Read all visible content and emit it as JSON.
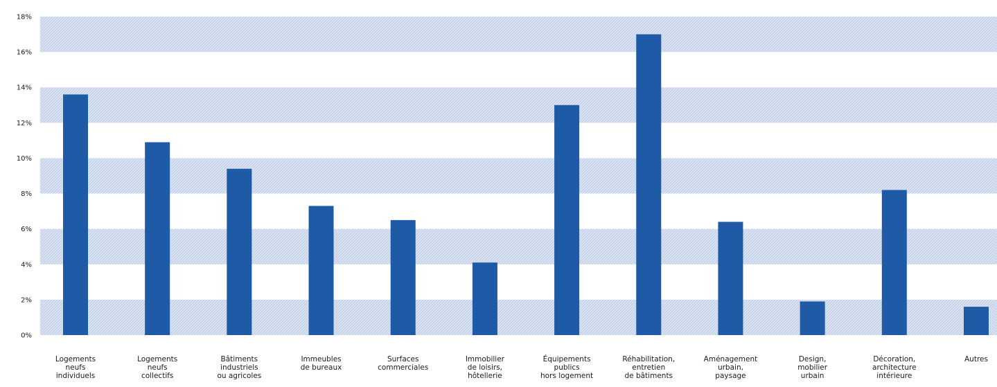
{
  "chart_data": {
    "type": "bar",
    "categories": [
      [
        "Logements",
        "neufs",
        "individuels"
      ],
      [
        "Logements",
        "neufs",
        "collectifs"
      ],
      [
        "Bâtiments",
        "industriels",
        "ou agricoles"
      ],
      [
        "Immeubles",
        "de bureaux"
      ],
      [
        "Surfaces",
        "commerciales"
      ],
      [
        "Immobilier",
        "de loisirs,",
        "hôtellerie"
      ],
      [
        "Équipements",
        "publics",
        "hors logement"
      ],
      [
        "Réhabilitation,",
        "entretien",
        "de bâtiments"
      ],
      [
        "Aménagement",
        "urbain,",
        "paysage"
      ],
      [
        "Design,",
        "mobilier",
        "urbain"
      ],
      [
        "Décoration,",
        "architecture",
        "intérieure"
      ],
      [
        "Autres"
      ]
    ],
    "values": [
      13.6,
      10.9,
      9.4,
      7.3,
      6.5,
      4.1,
      13.0,
      17.0,
      6.4,
      1.9,
      8.2,
      1.6
    ],
    "yticks": [
      "18%",
      "16%",
      "14%",
      "12%",
      "10%",
      "8%",
      "6%",
      "4%",
      "2%",
      "0%"
    ],
    "ylim": [
      0,
      18
    ],
    "grid": "alternating hatched bands",
    "colors": {
      "bar": "#1f5aa6",
      "band": "#d9e3f2",
      "hatch": "#b9c9e3"
    }
  }
}
